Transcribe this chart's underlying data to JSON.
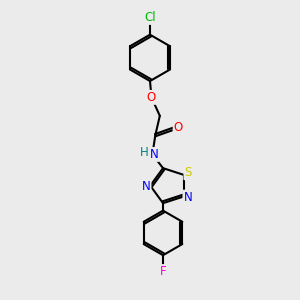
{
  "bg_color": "#ebebeb",
  "bond_color": "#000000",
  "bond_width": 1.5,
  "atom_colors": {
    "Cl": "#00bb00",
    "O": "#ff0000",
    "N": "#0000ff",
    "S": "#cccc00",
    "F": "#ff00cc",
    "H": "#008080",
    "C": "#000000"
  },
  "font_size": 8.5,
  "fig_size": [
    3.0,
    3.0
  ],
  "dpi": 100
}
